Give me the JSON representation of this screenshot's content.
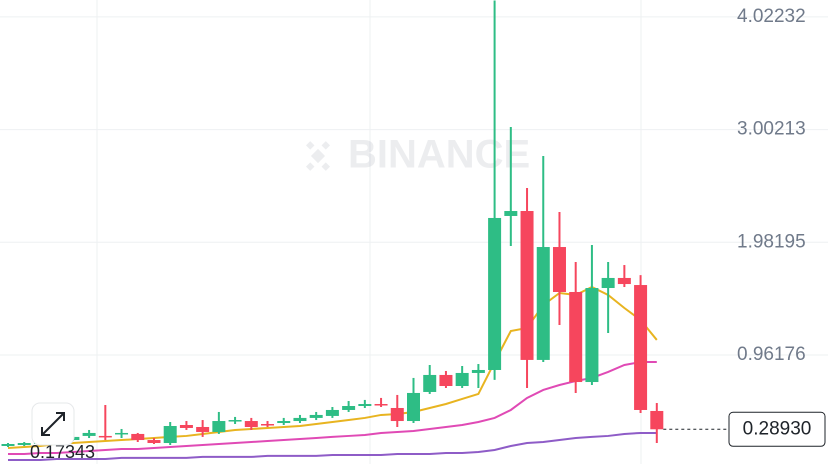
{
  "chart_data": {
    "type": "candlestick",
    "watermark": "BINANCE",
    "open": [
      0.138,
      0.147,
      0.156,
      0.174,
      0.192,
      0.229,
      0.229,
      0.247,
      0.247,
      0.192,
      0.165,
      0.328,
      0.31,
      0.265,
      0.364,
      0.364,
      0.337,
      0.346,
      0.364,
      0.392,
      0.41,
      0.464,
      0.5,
      0.518,
      0.482,
      0.364,
      0.627,
      0.781,
      0.681,
      0.799,
      0.826,
      2.22,
      2.265,
      0.917,
      1.939,
      1.532,
      0.717,
      1.568,
      1.659,
      1.595,
      0.455
    ],
    "high": [
      0.165,
      0.174,
      0.183,
      0.21,
      0.256,
      0.283,
      0.509,
      0.292,
      0.256,
      0.21,
      0.355,
      0.364,
      0.373,
      0.446,
      0.401,
      0.392,
      0.364,
      0.392,
      0.419,
      0.446,
      0.491,
      0.545,
      0.555,
      0.573,
      0.6,
      0.754,
      0.871,
      0.817,
      0.862,
      0.88,
      4.17,
      3.025,
      2.473,
      2.763,
      2.256,
      1.803,
      1.957,
      1.803,
      1.776,
      1.685,
      0.527
    ],
    "low": [
      0.129,
      0.138,
      0.147,
      0.156,
      0.183,
      0.21,
      0.192,
      0.21,
      0.174,
      0.156,
      0.147,
      0.283,
      0.22,
      0.247,
      0.337,
      0.283,
      0.31,
      0.328,
      0.346,
      0.373,
      0.392,
      0.446,
      0.482,
      0.491,
      0.31,
      0.346,
      0.609,
      0.663,
      0.663,
      0.663,
      0.736,
      1.948,
      0.663,
      0.898,
      1.233,
      0.618,
      0.69,
      1.161,
      1.577,
      0.437,
      0.165
    ],
    "close": [
      0.156,
      0.165,
      0.174,
      0.192,
      0.22,
      0.256,
      0.22,
      0.256,
      0.192,
      0.165,
      0.319,
      0.301,
      0.265,
      0.364,
      0.373,
      0.31,
      0.328,
      0.364,
      0.392,
      0.419,
      0.464,
      0.5,
      0.518,
      0.509,
      0.364,
      0.618,
      0.781,
      0.681,
      0.799,
      0.826,
      2.202,
      2.265,
      0.917,
      1.939,
      1.532,
      0.717,
      1.568,
      1.659,
      1.604,
      0.464,
      0.2893
    ],
    "up_color": "#2ebd85",
    "down_color": "#f6465d",
    "series": [
      {
        "color": "#e8b420",
        "values": [
          0.12,
          0.129,
          0.138,
          0.156,
          0.165,
          0.174,
          0.183,
          0.192,
          0.201,
          0.21,
          0.22,
          0.229,
          0.247,
          0.265,
          0.283,
          0.292,
          0.301,
          0.31,
          0.319,
          0.337,
          0.355,
          0.373,
          0.392,
          0.419,
          0.428,
          0.446,
          0.482,
          0.518,
          0.564,
          0.609,
          0.898,
          1.179,
          1.206,
          1.414,
          1.523,
          1.505,
          1.577,
          1.505,
          1.387,
          1.278,
          1.098
        ]
      },
      {
        "color": "#e04ab5",
        "values": [
          0.066,
          0.066,
          0.075,
          0.075,
          0.084,
          0.093,
          0.102,
          0.111,
          0.111,
          0.12,
          0.129,
          0.138,
          0.147,
          0.156,
          0.165,
          0.174,
          0.183,
          0.192,
          0.201,
          0.21,
          0.22,
          0.229,
          0.238,
          0.256,
          0.265,
          0.274,
          0.292,
          0.31,
          0.328,
          0.355,
          0.392,
          0.464,
          0.573,
          0.645,
          0.69,
          0.726,
          0.754,
          0.808,
          0.871,
          0.898,
          0.898
        ]
      },
      {
        "color": "#8e5cc7",
        "values": [
          0.011,
          0.011,
          0.011,
          0.02,
          0.02,
          0.02,
          0.02,
          0.03,
          0.03,
          0.03,
          0.03,
          0.03,
          0.039,
          0.039,
          0.039,
          0.039,
          0.048,
          0.048,
          0.048,
          0.048,
          0.057,
          0.057,
          0.057,
          0.057,
          0.066,
          0.066,
          0.066,
          0.075,
          0.075,
          0.084,
          0.102,
          0.138,
          0.165,
          0.174,
          0.192,
          0.21,
          0.22,
          0.229,
          0.247,
          0.256,
          0.256
        ]
      }
    ],
    "ylim": [
      -0.025,
      4.175
    ],
    "yticks": [
      4.02232,
      3.00213,
      1.98195,
      0.96176
    ],
    "grid": true,
    "last_price": {
      "value": 0.2893,
      "label": "0.28930"
    },
    "low_label": "0.17343"
  }
}
